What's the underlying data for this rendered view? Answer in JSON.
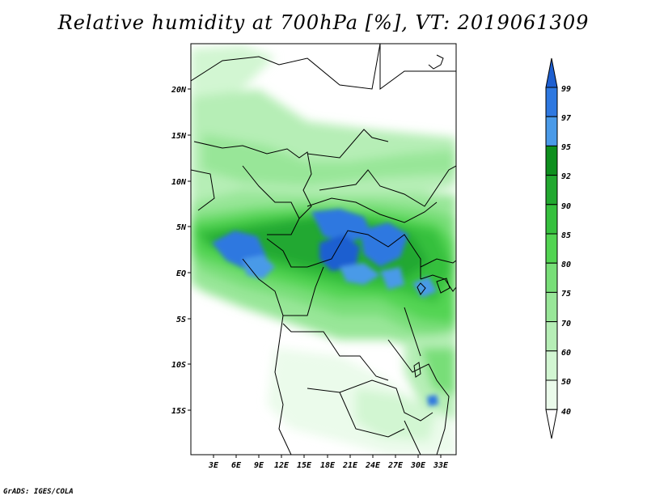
{
  "title": "Relative humidity at 700hPa [%], VT: 2019061309",
  "credit": "GrADS: IGES/COLA",
  "map": {
    "lon_range": [
      0,
      35
    ],
    "lat_range": [
      -20,
      24
    ],
    "lon_ticks": [
      "3E",
      "6E",
      "9E",
      "12E",
      "15E",
      "18E",
      "21E",
      "24E",
      "27E",
      "30E",
      "33E"
    ],
    "lat_ticks": [
      "20N",
      "15N",
      "10N",
      "5N",
      "EQ",
      "5S",
      "10S",
      "15S"
    ]
  },
  "colorbar": {
    "levels": [
      "99",
      "97",
      "95",
      "92",
      "90",
      "85",
      "80",
      "75",
      "70",
      "60",
      "50",
      "40"
    ],
    "colors": [
      "#1e5fd0",
      "#2e78e0",
      "#4a9ae8",
      "#0e8f1e",
      "#22a830",
      "#36c03e",
      "#52d452",
      "#78de78",
      "#98e698",
      "#b6eeb6",
      "#d2f6d2",
      "#ebfbeb"
    ]
  }
}
